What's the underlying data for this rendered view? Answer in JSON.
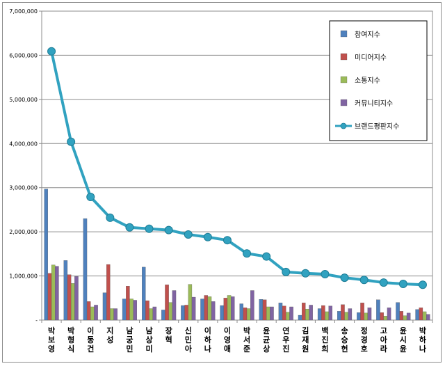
{
  "chart_data": {
    "type": "bar",
    "title": "",
    "xlabel": "",
    "ylabel": "",
    "ylim": [
      0,
      7000000
    ],
    "yticks": [
      0,
      1000000,
      2000000,
      3000000,
      4000000,
      5000000,
      6000000,
      7000000
    ],
    "ytick_labels": [
      "-",
      "1,000,000",
      "2,000,000",
      "3,000,000",
      "4,000,000",
      "5,000,000",
      "6,000,000",
      "7,000,000"
    ],
    "grid": true,
    "legend_position": "top-right",
    "categories": [
      "박보영",
      "박형식",
      "이동건",
      "지성",
      "남궁민",
      "남상미",
      "장혁",
      "신민아",
      "이하나",
      "이영애",
      "박서준",
      "윤균상",
      "연우진",
      "김재원",
      "백진희",
      "송승헌",
      "정경호",
      "고아라",
      "윤시윤",
      "박하나"
    ],
    "series": [
      {
        "name": "참여지수",
        "kind": "bar",
        "color": "#4f81bd",
        "values": [
          2970000,
          1350000,
          2300000,
          620000,
          480000,
          1200000,
          230000,
          330000,
          480000,
          330000,
          370000,
          470000,
          390000,
          110000,
          260000,
          200000,
          170000,
          460000,
          400000,
          240000
        ]
      },
      {
        "name": "미디어지수",
        "kind": "bar",
        "color": "#c0504d",
        "values": [
          1060000,
          1030000,
          420000,
          1260000,
          770000,
          440000,
          800000,
          340000,
          560000,
          500000,
          280000,
          460000,
          320000,
          390000,
          330000,
          350000,
          390000,
          170000,
          200000,
          280000
        ]
      },
      {
        "name": "소통지수",
        "kind": "bar",
        "color": "#9bbb59",
        "values": [
          1250000,
          830000,
          300000,
          260000,
          480000,
          260000,
          400000,
          810000,
          530000,
          560000,
          260000,
          300000,
          180000,
          250000,
          190000,
          180000,
          160000,
          90000,
          100000,
          190000
        ]
      },
      {
        "name": "커뮤니티지수",
        "kind": "bar",
        "color": "#8064a2",
        "values": [
          1220000,
          990000,
          340000,
          260000,
          450000,
          300000,
          670000,
          520000,
          420000,
          530000,
          670000,
          300000,
          300000,
          340000,
          320000,
          260000,
          280000,
          280000,
          160000,
          130000
        ]
      },
      {
        "name": "브랜드평판지수",
        "kind": "line",
        "color": "#31a2c0",
        "values": [
          6090000,
          4040000,
          2790000,
          2320000,
          2100000,
          2070000,
          2040000,
          1940000,
          1880000,
          1810000,
          1510000,
          1440000,
          1090000,
          1060000,
          1040000,
          960000,
          910000,
          850000,
          820000,
          800000
        ]
      }
    ]
  }
}
